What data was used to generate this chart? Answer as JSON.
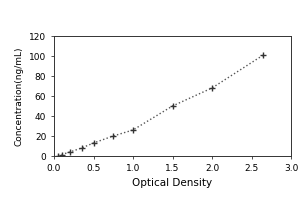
{
  "x_data": [
    0.05,
    0.1,
    0.2,
    0.35,
    0.5,
    0.75,
    1.0,
    1.5,
    2.0,
    2.65
  ],
  "y_data": [
    0.5,
    1.5,
    4.0,
    8.0,
    13.0,
    20.0,
    26.0,
    50.0,
    68.0,
    101.0
  ],
  "xlabel": "Optical Density",
  "ylabel": "Concentration(ng/mL)",
  "xlim": [
    0,
    3
  ],
  "ylim": [
    0,
    120
  ],
  "xticks": [
    0,
    0.5,
    1,
    1.5,
    2,
    2.5,
    3
  ],
  "yticks": [
    0,
    20,
    40,
    60,
    80,
    100,
    120
  ],
  "line_color": "#555555",
  "marker_color": "#333333",
  "marker": "+",
  "linestyle": "dotted",
  "xlabel_fontsize": 7.5,
  "ylabel_fontsize": 6.5,
  "tick_fontsize": 6.5,
  "background_color": "#ffffff",
  "outer_bg": "#ffffff"
}
